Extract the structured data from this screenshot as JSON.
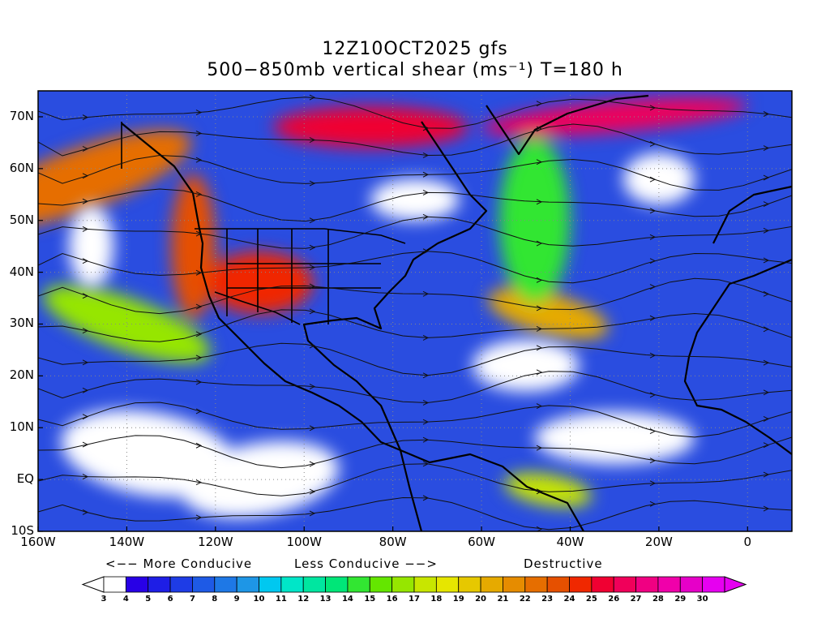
{
  "title": {
    "line1": "12Z10OCT2025 gfs",
    "line2": "500−850mb vertical shear (ms⁻¹) T=180 h"
  },
  "map": {
    "lon_range": [
      -160,
      10
    ],
    "lat_range": [
      -10,
      75
    ],
    "lat_ticks": [
      {
        "value": 70,
        "label": "70N"
      },
      {
        "value": 60,
        "label": "60N"
      },
      {
        "value": 50,
        "label": "50N"
      },
      {
        "value": 40,
        "label": "40N"
      },
      {
        "value": 30,
        "label": "30N"
      },
      {
        "value": 20,
        "label": "20N"
      },
      {
        "value": 10,
        "label": "10N"
      },
      {
        "value": 0,
        "label": "EQ"
      },
      {
        "value": -10,
        "label": "10S"
      }
    ],
    "lon_ticks": [
      {
        "value": -160,
        "label": "160W"
      },
      {
        "value": -140,
        "label": "140W"
      },
      {
        "value": -120,
        "label": "120W"
      },
      {
        "value": -100,
        "label": "100W"
      },
      {
        "value": -80,
        "label": "80W"
      },
      {
        "value": -60,
        "label": "60W"
      },
      {
        "value": -40,
        "label": "40W"
      },
      {
        "value": -20,
        "label": "20W"
      },
      {
        "value": 0,
        "label": "0"
      }
    ],
    "background_color": "#2a4de0",
    "shear_bands": [
      {
        "lon": -150,
        "lat": 58,
        "rx": 26,
        "ry": 6,
        "rot": -20,
        "level": 22
      },
      {
        "lon": -125,
        "lat": 45,
        "rx": 5,
        "ry": 14,
        "rot": 0,
        "level": 23
      },
      {
        "lon": -110,
        "lat": 38,
        "rx": 12,
        "ry": 6,
        "rot": 0,
        "level": 24
      },
      {
        "lon": -85,
        "lat": 68,
        "rx": 22,
        "ry": 4,
        "rot": 0,
        "level": 25
      },
      {
        "lon": -30,
        "lat": 70,
        "rx": 30,
        "ry": 3,
        "rot": -5,
        "level": 26
      },
      {
        "lon": -45,
        "lat": 32,
        "rx": 14,
        "ry": 4,
        "rot": 15,
        "level": 20
      },
      {
        "lon": -140,
        "lat": 30,
        "rx": 20,
        "ry": 5,
        "rot": 20,
        "level": 16
      },
      {
        "lon": -45,
        "lat": -2,
        "rx": 10,
        "ry": 3,
        "rot": 10,
        "level": 17
      },
      {
        "lon": -48,
        "lat": 50,
        "rx": 8,
        "ry": 16,
        "rot": 0,
        "level": 14
      }
    ],
    "calm_areas": [
      {
        "lon": -135,
        "lat": 5,
        "rx": 20,
        "ry": 8,
        "rot": 10
      },
      {
        "lon": -110,
        "lat": 0,
        "rx": 18,
        "ry": 7,
        "rot": -10
      },
      {
        "lon": -50,
        "lat": 22,
        "rx": 12,
        "ry": 5,
        "rot": 0
      },
      {
        "lon": -30,
        "lat": 8,
        "rx": 18,
        "ry": 5,
        "rot": 0
      },
      {
        "lon": -148,
        "lat": 45,
        "rx": 5,
        "ry": 8,
        "rot": 0
      },
      {
        "lon": -20,
        "lat": 58,
        "rx": 8,
        "ry": 5,
        "rot": 0
      },
      {
        "lon": -75,
        "lat": 54,
        "rx": 10,
        "ry": 4,
        "rot": 0
      }
    ]
  },
  "legend": {
    "more_conducive": "<−− More Conducive",
    "less_conducive": "Less Conducive −−>",
    "destructive": "Destructive"
  },
  "colorbar": {
    "labels": [
      "3",
      "4",
      "5",
      "6",
      "7",
      "8",
      "9",
      "10",
      "11",
      "12",
      "13",
      "14",
      "15",
      "16",
      "17",
      "18",
      "19",
      "20",
      "21",
      "22",
      "23",
      "24",
      "25",
      "26",
      "27",
      "28",
      "29",
      "30"
    ],
    "colors": [
      "#ffffff",
      "#2800e6",
      "#1e1ee6",
      "#1e3ce6",
      "#1e5ae6",
      "#1e78e6",
      "#1e96e6",
      "#00c8f0",
      "#00e6c8",
      "#00e6a0",
      "#00e678",
      "#32e632",
      "#64e600",
      "#96e600",
      "#c8e600",
      "#e6e600",
      "#e6c800",
      "#e6aa00",
      "#e68c00",
      "#e66e00",
      "#e65000",
      "#f02800",
      "#f00032",
      "#f0005a",
      "#f00082",
      "#f000aa",
      "#e600c8",
      "#e600f0"
    ]
  }
}
